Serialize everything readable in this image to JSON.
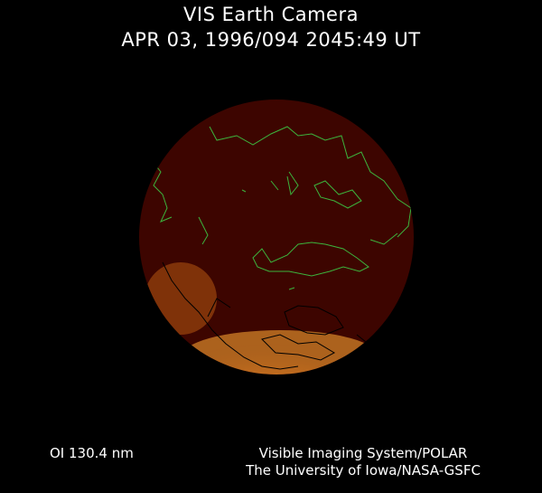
{
  "header": {
    "title": "VIS Earth Camera",
    "timestamp": "APR 03, 1996/094 2045:49 UT"
  },
  "footer": {
    "band": "OI  130.4 nm",
    "instrument": "Visible Imaging System/POLAR",
    "institution": "The University of Iowa/NASA-GSFC"
  },
  "colors": {
    "background": "#000000",
    "disk": "#3d0500",
    "aurora": "#f0901c",
    "coastline_day": "#3cb43c",
    "coastline_night": "#000000"
  }
}
